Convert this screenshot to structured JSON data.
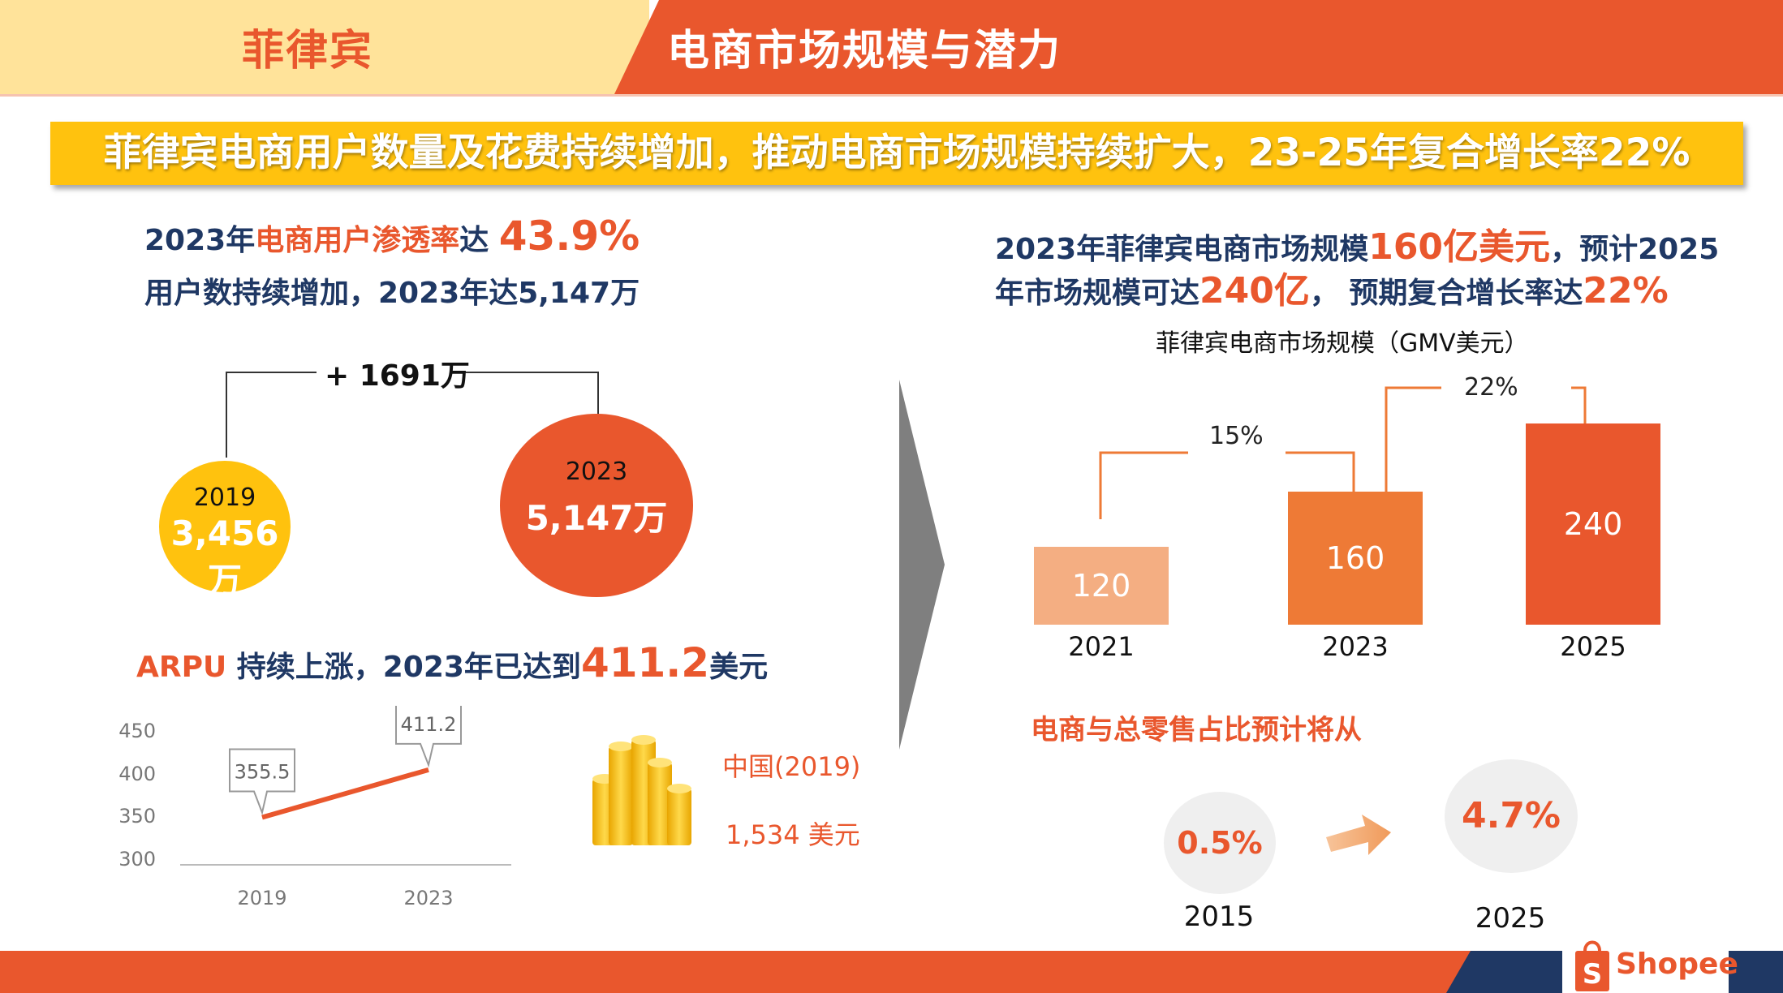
{
  "header": {
    "country": "菲律宾",
    "title": "电商市场规模与潜力"
  },
  "banner": {
    "text": "菲律宾电商用户数量及花费持续增加，推动电商市场规模持续扩大，23-25年复合增长率22%"
  },
  "users": {
    "line1_prefix": "2023年",
    "line1_highlight": "电商用户渗透率",
    "line1_mid": "达 ",
    "line1_value": "43.9%",
    "line2": "用户数持续增加，2023年达5,147万",
    "increase": "+ 1691万",
    "circle_2019": {
      "year": "2019",
      "value": "3,456万"
    },
    "circle_2023": {
      "year": "2023",
      "value": "5,147万"
    }
  },
  "arpu": {
    "title_prefix": "ARPU",
    "title_mid": " 持续上涨，2023年已达到",
    "title_value": "411.2",
    "title_suffix": "美元",
    "china_label": "中国(2019)",
    "china_value": "1,534 美元",
    "chart_yticks": [
      "450",
      "400",
      "350",
      "300"
    ],
    "chart_xticks": [
      "2019",
      "2023"
    ],
    "label_2019": "355.5",
    "label_2023": "411.2"
  },
  "market": {
    "line1_prefix": "2023年菲律宾电商市场规模",
    "line1_value": "160亿美元",
    "line1_suffix": "，预计2025",
    "line2_prefix": "年市场规模可达",
    "line2_value": "240亿",
    "line2_mid": "， 预期复合增长率达",
    "line2_rate": "22%",
    "chart_title": "菲律宾电商市场规模（GMV美元）",
    "growth_1": "15%",
    "growth_2": "22%"
  },
  "share": {
    "title": "电商与总零售占比预计将从",
    "from_value": "0.5%",
    "from_year": "2015",
    "to_value": "4.7%",
    "to_year": "2025"
  },
  "logo": {
    "text": "Shopee"
  },
  "colors": {
    "brand_orange": "#E9572D",
    "navy": "#1F3864",
    "yellow": "#FFC20E",
    "cream": "#FFE39A"
  },
  "chart_data": [
    {
      "type": "line",
      "title": "ARPU",
      "x": [
        "2019",
        "2023"
      ],
      "series": [
        {
          "name": "ARPU (USD)",
          "values": [
            355.5,
            411.2
          ]
        }
      ],
      "ylim": [
        300,
        450
      ],
      "yticks": [
        300,
        350,
        400,
        450
      ]
    },
    {
      "type": "bar",
      "title": "菲律宾电商市场规模（GMV美元）",
      "categories": [
        "2021",
        "2023",
        "2025"
      ],
      "values": [
        120,
        160,
        240
      ],
      "colors": [
        "#F4AE82",
        "#EE7A36",
        "#E9572D"
      ]
    }
  ]
}
